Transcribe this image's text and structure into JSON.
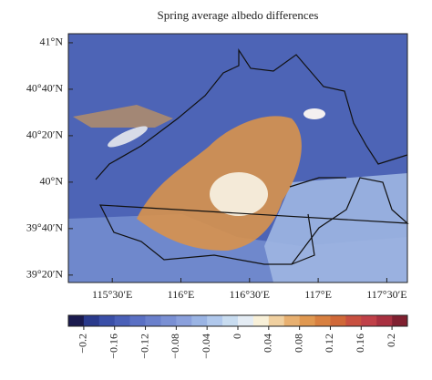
{
  "chart_data": {
    "type": "map",
    "title": "Spring average albedo differences",
    "xlim": [
      115.18,
      117.65
    ],
    "ylim": [
      39.28,
      41.065
    ],
    "xticks": [
      {
        "value": 115.5,
        "label": "115°30′E"
      },
      {
        "value": 116,
        "label": "116°E"
      },
      {
        "value": 116.5,
        "label": "116°30′E"
      },
      {
        "value": 117,
        "label": "117°E"
      },
      {
        "value": 117.5,
        "label": "117°30′E"
      }
    ],
    "yticks": [
      {
        "value": 39.3333,
        "label": "39°20′N"
      },
      {
        "value": 39.6667,
        "label": "39°40′N"
      },
      {
        "value": 40,
        "label": "40°N"
      },
      {
        "value": 40.3333,
        "label": "40°20′N"
      },
      {
        "value": 40.6667,
        "label": "40°40′N"
      },
      {
        "value": 41,
        "label": "41°N"
      }
    ],
    "colorbar": {
      "clim": [
        -0.22,
        0.22
      ],
      "ticks": [
        {
          "value": -0.2,
          "label": "−0.2"
        },
        {
          "value": -0.16,
          "label": "−0.16"
        },
        {
          "value": -0.12,
          "label": "−0.12"
        },
        {
          "value": -0.08,
          "label": "−0.08"
        },
        {
          "value": -0.04,
          "label": "−0.04"
        },
        0,
        0.04,
        0.08,
        0.12,
        0.16,
        0.2
      ],
      "colors": [
        "#1a1a4e",
        "#2a3a8c",
        "#3a4fa8",
        "#4a60b8",
        "#5a70c4",
        "#6a80cc",
        "#7a90d4",
        "#8aa0dc",
        "#9ab4e4",
        "#b0c8ec",
        "#c8dcf0",
        "#e4ecf4",
        "#f8f0d8",
        "#f0d0a0",
        "#e8b070",
        "#e09850",
        "#d88040",
        "#d06838",
        "#c85040",
        "#c04048",
        "#a83040",
        "#802030"
      ]
    }
  }
}
